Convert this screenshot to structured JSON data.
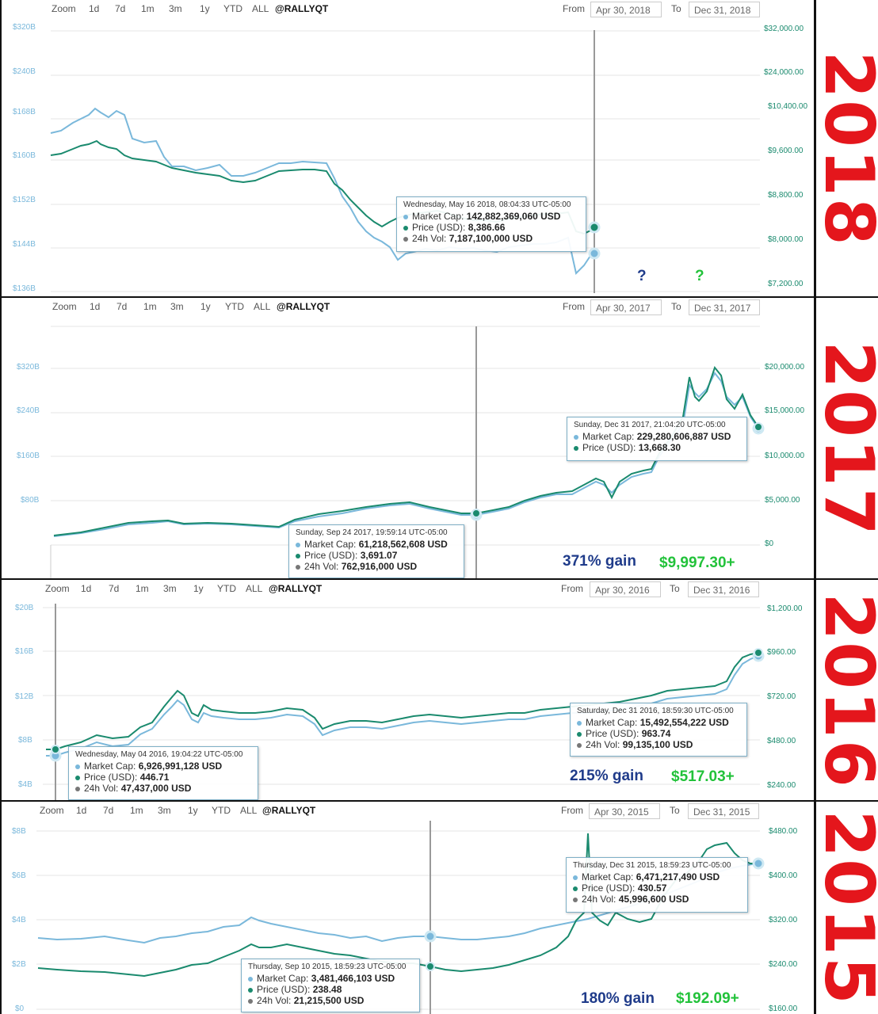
{
  "colors": {
    "cap_line": "#7ab8db",
    "price_line": "#1a8a6e",
    "vol_dot": "#777777",
    "year_text": "#e4161c",
    "gain_text": "#1f3b8a",
    "dollar_text": "#22c23a",
    "qmark_blue": "#1f3b8a",
    "qmark_green": "#22c23a"
  },
  "toolbar": {
    "zoom": "Zoom",
    "buttons": [
      "1d",
      "7d",
      "1m",
      "3m",
      "1y",
      "YTD",
      "ALL"
    ],
    "brand": "@RALLYQT",
    "from_label": "From",
    "to_label": "To"
  },
  "panels": [
    {
      "year": "2018",
      "from": "Apr 30, 2018",
      "to": "Dec 31, 2018",
      "left_ticks": [
        "$320B",
        "$240B",
        "$168B",
        "$160B",
        "$152B",
        "$144B",
        "$136B"
      ],
      "right_ticks": [
        "$32,000.00",
        "$24,000.00",
        "$10,400.00",
        "$9,600.00",
        "$8,800.00",
        "$8,000.00",
        "$7,200.00"
      ],
      "tooltip": {
        "date": "Wednesday, May 16 2018, 08:04:33 UTC-05:00",
        "cap_label": "Market Cap:",
        "cap": "142,882,369,060 USD",
        "price_label": "Price (USD):",
        "price": "8,386.66",
        "vol_label": "24h Vol:",
        "vol": "7,187,100,000 USD"
      },
      "question_marks": [
        "?",
        "?"
      ]
    },
    {
      "year": "2017",
      "from": "Apr 30, 2017",
      "to": "Dec 31, 2017",
      "left_ticks": [
        "$320B",
        "$240B",
        "$160B",
        "$80B"
      ],
      "right_ticks": [
        "$20,000.00",
        "$15,000.00",
        "$10,000.00",
        "$5,000.00",
        "$0"
      ],
      "tooltip_a": {
        "date": "Sunday, Sep 24 2017, 19:59:14 UTC-05:00",
        "cap_label": "Market Cap:",
        "cap": "61,218,562,608 USD",
        "price_label": "Price (USD):",
        "price": "3,691.07",
        "vol_label": "24h Vol:",
        "vol": "762,916,000 USD"
      },
      "tooltip_b": {
        "date": "Sunday, Dec 31 2017, 21:04:20 UTC-05:00",
        "cap_label": "Market Cap:",
        "cap": "229,280,606,887 USD",
        "price_label": "Price (USD):",
        "price": "13,668.30"
      },
      "gain": "371% gain",
      "dollar": "$9,997.30+"
    },
    {
      "year": "2016",
      "from": "Apr 30, 2016",
      "to": "Dec 31, 2016",
      "left_ticks": [
        "$20B",
        "$16B",
        "$12B",
        "$8B",
        "$4B"
      ],
      "right_ticks": [
        "$1,200.00",
        "$960.00",
        "$720.00",
        "$480.00",
        "$240.00"
      ],
      "tooltip_a": {
        "date": "Wednesday, May 04 2016, 19:04:22 UTC-05:00",
        "cap_label": "Market Cap:",
        "cap": "6,926,991,128 USD",
        "price_label": "Price (USD):",
        "price": "446.71",
        "vol_label": "24h Vol:",
        "vol": "47,437,000 USD"
      },
      "tooltip_b": {
        "date": "Saturday, Dec 31 2016, 18:59:30 UTC-05:00",
        "cap_label": "Market Cap:",
        "cap": "15,492,554,222 USD",
        "price_label": "Price (USD):",
        "price": "963.74",
        "vol_label": "24h Vol:",
        "vol": "99,135,100 USD"
      },
      "gain": "215% gain",
      "dollar": "$517.03+"
    },
    {
      "year": "2015",
      "from": "Apr 30, 2015",
      "to": "Dec 31, 2015",
      "left_ticks": [
        "$8B",
        "$6B",
        "$4B",
        "$2B",
        "$0"
      ],
      "right_ticks": [
        "$480.00",
        "$400.00",
        "$320.00",
        "$240.00",
        "$160.00"
      ],
      "tooltip_a": {
        "date": "Thursday, Sep 10 2015, 18:59:23 UTC-05:00",
        "cap_label": "Market Cap:",
        "cap": "3,481,466,103 USD",
        "price_label": "Price (USD):",
        "price": "238.48",
        "vol_label": "24h Vol:",
        "vol": "21,215,500 USD"
      },
      "tooltip_b": {
        "date": "Thursday, Dec 31 2015, 18:59:23 UTC-05:00",
        "cap_label": "Market Cap:",
        "cap": "6,471,217,490 USD",
        "price_label": "Price (USD):",
        "price": "430.57",
        "vol_label": "24h Vol:",
        "vol": "45,996,600 USD"
      },
      "gain": "180% gain",
      "dollar": "$192.09+"
    }
  ],
  "chart_data": [
    {
      "type": "line",
      "title": "",
      "year": "2018",
      "x": [
        "2018-01-01",
        "2018-01-15",
        "2018-02-01",
        "2018-02-15",
        "2018-03-01",
        "2018-03-15",
        "2018-04-01",
        "2018-04-15",
        "2018-05-01",
        "2018-05-16",
        "2018-05-20"
      ],
      "series": [
        {
          "values": [
            166,
            170,
            160,
            158,
            158,
            159,
            153,
            145,
            147,
            142.9,
            144
          ]
        },
        {
          "values": [
            9650,
            9920,
            9380,
            9320,
            9100,
            9300,
            8650,
            8250,
            8220,
            8386.66,
            8240
          ]
        }
      ],
      "ylim_left": [
        136,
        320
      ],
      "ylim_right": [
        7200,
        32000
      ]
    },
    {
      "type": "line",
      "title": "",
      "year": "2017",
      "x": [
        "2017-01-01",
        "2017-02-01",
        "2017-03-01",
        "2017-04-01",
        "2017-05-01",
        "2017-06-01",
        "2017-07-01",
        "2017-08-01",
        "2017-09-01",
        "2017-09-24",
        "2017-10-15",
        "2017-11-15",
        "2017-12-01",
        "2017-12-17",
        "2017-12-31"
      ],
      "series": [
        {
          "values": [
            17,
            20,
            24,
            23,
            23,
            29,
            42,
            52,
            62,
            61.2,
            80,
            120,
            170,
            330,
            229.3
          ]
        },
        {
          "values": [
            1000,
            1200,
            1300,
            1250,
            1280,
            1700,
            2400,
            3000,
            3700,
            3691.07,
            4500,
            6500,
            9500,
            19500,
            13668.3
          ]
        }
      ],
      "ylim_left": [
        0,
        320
      ],
      "ylim_right": [
        0,
        20000
      ]
    },
    {
      "type": "line",
      "title": "",
      "year": "2016",
      "x": [
        "2016-01-01",
        "2016-02-01",
        "2016-03-01",
        "2016-04-01",
        "2016-05-04",
        "2016-06-15",
        "2016-07-01",
        "2016-08-01",
        "2016-09-01",
        "2016-10-01",
        "2016-11-01",
        "2016-12-01",
        "2016-12-31"
      ],
      "series": [
        {
          "values": [
            6.4,
            5.9,
            6.5,
            6.7,
            6.93,
            10,
            10.6,
            9.4,
            9.6,
            9.8,
            11.8,
            12.5,
            15.49
          ]
        },
        {
          "values": [
            430,
            380,
            420,
            430,
            446.71,
            650,
            670,
            590,
            600,
            620,
            730,
            750,
            963.74
          ]
        }
      ],
      "ylim_left": [
        4,
        20
      ],
      "ylim_right": [
        240,
        1200
      ]
    },
    {
      "type": "line",
      "title": "",
      "year": "2015",
      "x": [
        "2015-01-01",
        "2015-02-01",
        "2015-03-01",
        "2015-04-01",
        "2015-05-01",
        "2015-06-01",
        "2015-07-01",
        "2015-08-01",
        "2015-09-10",
        "2015-10-01",
        "2015-11-01",
        "2015-11-05",
        "2015-12-01",
        "2015-12-31"
      ],
      "series": [
        {
          "values": [
            3.8,
            3.7,
            3.9,
            3.4,
            3.3,
            3.4,
            4.4,
            3.7,
            3.48,
            3.5,
            4.4,
            5.3,
            5.8,
            6.47
          ]
        },
        {
          "values": [
            260,
            220,
            235,
            230,
            230,
            245,
            285,
            240,
            238.48,
            245,
            315,
            430,
            370,
            430.57
          ]
        }
      ],
      "ylim_left": [
        0,
        8
      ],
      "ylim_right": [
        160,
        480
      ]
    }
  ]
}
